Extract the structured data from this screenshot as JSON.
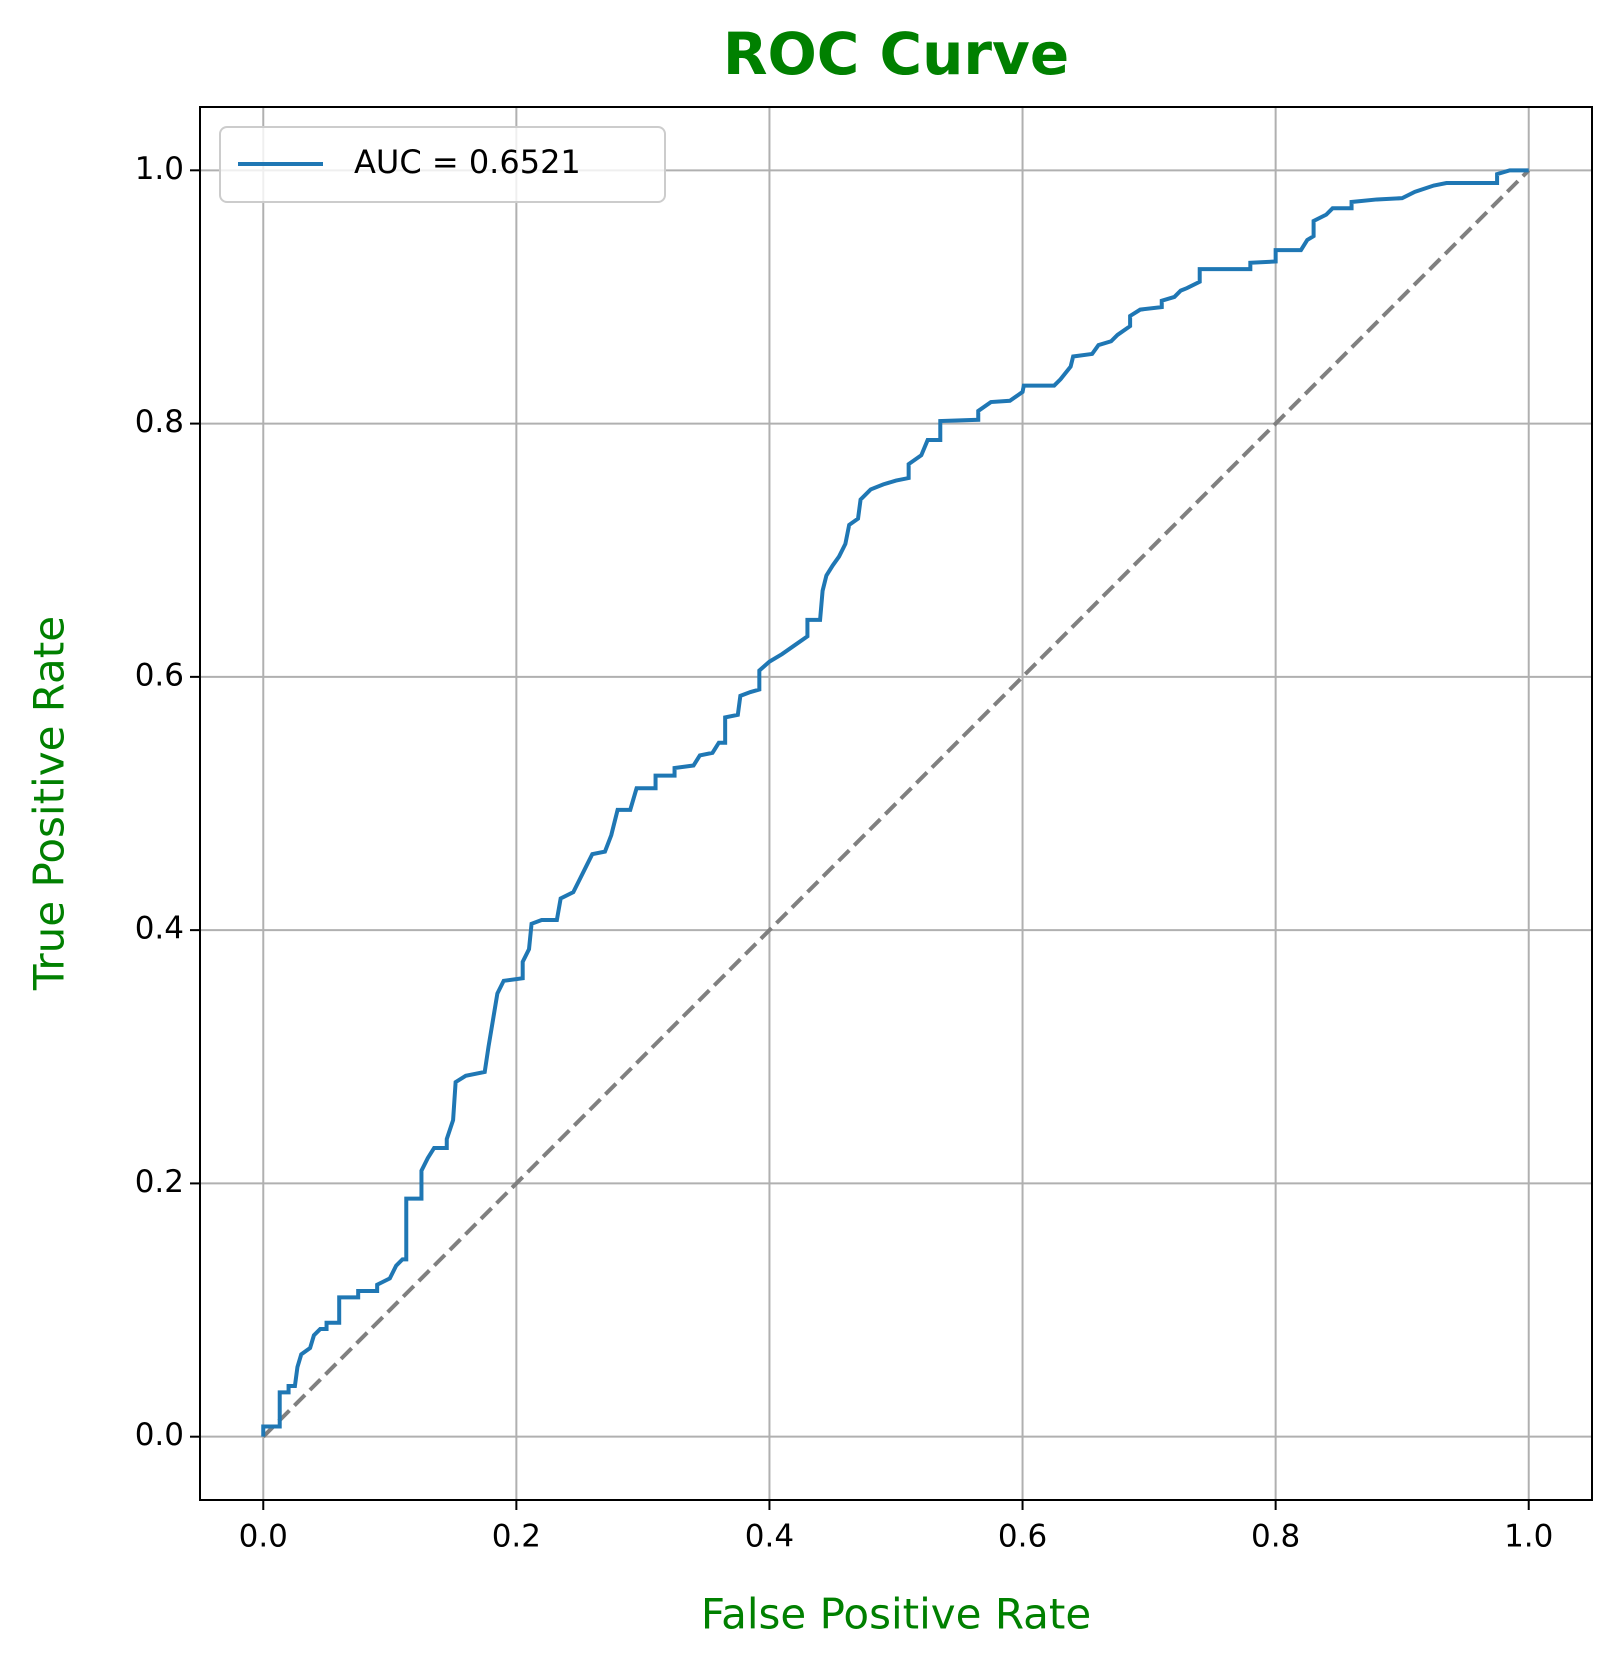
{
  "chart_data": {
    "type": "line",
    "title": "ROC Curve",
    "xlabel": "False Positive Rate",
    "ylabel": "True Positive Rate",
    "label_color": "green",
    "grid": true,
    "legend": "upper left",
    "xlim": [
      -0.05,
      1.05
    ],
    "ylim": [
      -0.05,
      1.05
    ],
    "xticks": [
      {
        "value": 0,
        "label": "0.0"
      },
      0.2,
      0.4,
      0.6,
      0.8,
      {
        "value": 1,
        "label": "1.0"
      }
    ],
    "yticks": [
      {
        "value": 0,
        "label": "0.0"
      },
      0.2,
      0.4,
      0.6,
      0.8,
      {
        "value": 1,
        "label": "1.0"
      }
    ],
    "diagonal": {
      "x": [
        0,
        1
      ],
      "values": [
        0,
        1
      ],
      "color": "#808080"
    },
    "series": [
      {
        "name": "AUC = 0.6521",
        "color": "#1f77b4",
        "x": [
          0,
          0,
          0.013,
          0.013,
          0.02,
          0.02,
          0.025,
          0.027,
          0.03,
          0.037,
          0.04,
          0.045,
          0.05,
          0.05,
          0.06,
          0.06,
          0.075,
          0.075,
          0.09,
          0.09,
          0.1,
          0.105,
          0.11,
          0.113,
          0.113,
          0.125,
          0.125,
          0.13,
          0.135,
          0.145,
          0.145,
          0.15,
          0.152,
          0.16,
          0.175,
          0.178,
          0.182,
          0.185,
          0.19,
          0.205,
          0.205,
          0.21,
          0.212,
          0.22,
          0.232,
          0.235,
          0.245,
          0.25,
          0.255,
          0.26,
          0.27,
          0.275,
          0.28,
          0.29,
          0.295,
          0.31,
          0.31,
          0.325,
          0.325,
          0.34,
          0.345,
          0.355,
          0.36,
          0.365,
          0.365,
          0.375,
          0.377,
          0.385,
          0.392,
          0.392,
          0.4,
          0.41,
          0.42,
          0.43,
          0.43,
          0.44,
          0.442,
          0.445,
          0.45,
          0.455,
          0.46,
          0.463,
          0.47,
          0.472,
          0.48,
          0.49,
          0.5,
          0.51,
          0.51,
          0.52,
          0.525,
          0.535,
          0.535,
          0.565,
          0.565,
          0.575,
          0.59,
          0.6,
          0.601,
          0.625,
          0.63,
          0.638,
          0.64,
          0.655,
          0.66,
          0.67,
          0.675,
          0.685,
          0.685,
          0.693,
          0.71,
          0.71,
          0.72,
          0.725,
          0.73,
          0.74,
          0.74,
          0.78,
          0.78,
          0.8,
          0.8,
          0.82,
          0.825,
          0.83,
          0.83,
          0.84,
          0.845,
          0.86,
          0.86,
          0.88,
          0.9,
          0.91,
          0.925,
          0.935,
          0.975,
          0.975,
          0.985,
          1
        ],
        "values": [
          0,
          0.008,
          0.008,
          0.035,
          0.035,
          0.04,
          0.04,
          0.055,
          0.065,
          0.07,
          0.08,
          0.085,
          0.085,
          0.09,
          0.09,
          0.11,
          0.11,
          0.115,
          0.115,
          0.12,
          0.125,
          0.135,
          0.14,
          0.14,
          0.188,
          0.188,
          0.21,
          0.22,
          0.228,
          0.228,
          0.235,
          0.25,
          0.28,
          0.285,
          0.288,
          0.308,
          0.332,
          0.35,
          0.36,
          0.362,
          0.375,
          0.385,
          0.405,
          0.408,
          0.408,
          0.425,
          0.43,
          0.44,
          0.45,
          0.46,
          0.462,
          0.475,
          0.495,
          0.495,
          0.512,
          0.512,
          0.522,
          0.522,
          0.528,
          0.53,
          0.538,
          0.54,
          0.548,
          0.548,
          0.568,
          0.57,
          0.585,
          0.588,
          0.59,
          0.605,
          0.612,
          0.618,
          0.625,
          0.632,
          0.645,
          0.645,
          0.668,
          0.68,
          0.688,
          0.695,
          0.705,
          0.72,
          0.725,
          0.74,
          0.748,
          0.752,
          0.755,
          0.757,
          0.768,
          0.775,
          0.787,
          0.787,
          0.802,
          0.803,
          0.81,
          0.817,
          0.818,
          0.825,
          0.83,
          0.83,
          0.835,
          0.845,
          0.853,
          0.855,
          0.862,
          0.865,
          0.87,
          0.877,
          0.885,
          0.89,
          0.892,
          0.897,
          0.9,
          0.905,
          0.907,
          0.912,
          0.922,
          0.922,
          0.927,
          0.928,
          0.937,
          0.937,
          0.945,
          0.948,
          0.96,
          0.965,
          0.97,
          0.97,
          0.975,
          0.977,
          0.978,
          0.983,
          0.988,
          0.99,
          0.99,
          0.997,
          1,
          1
        ]
      }
    ]
  }
}
